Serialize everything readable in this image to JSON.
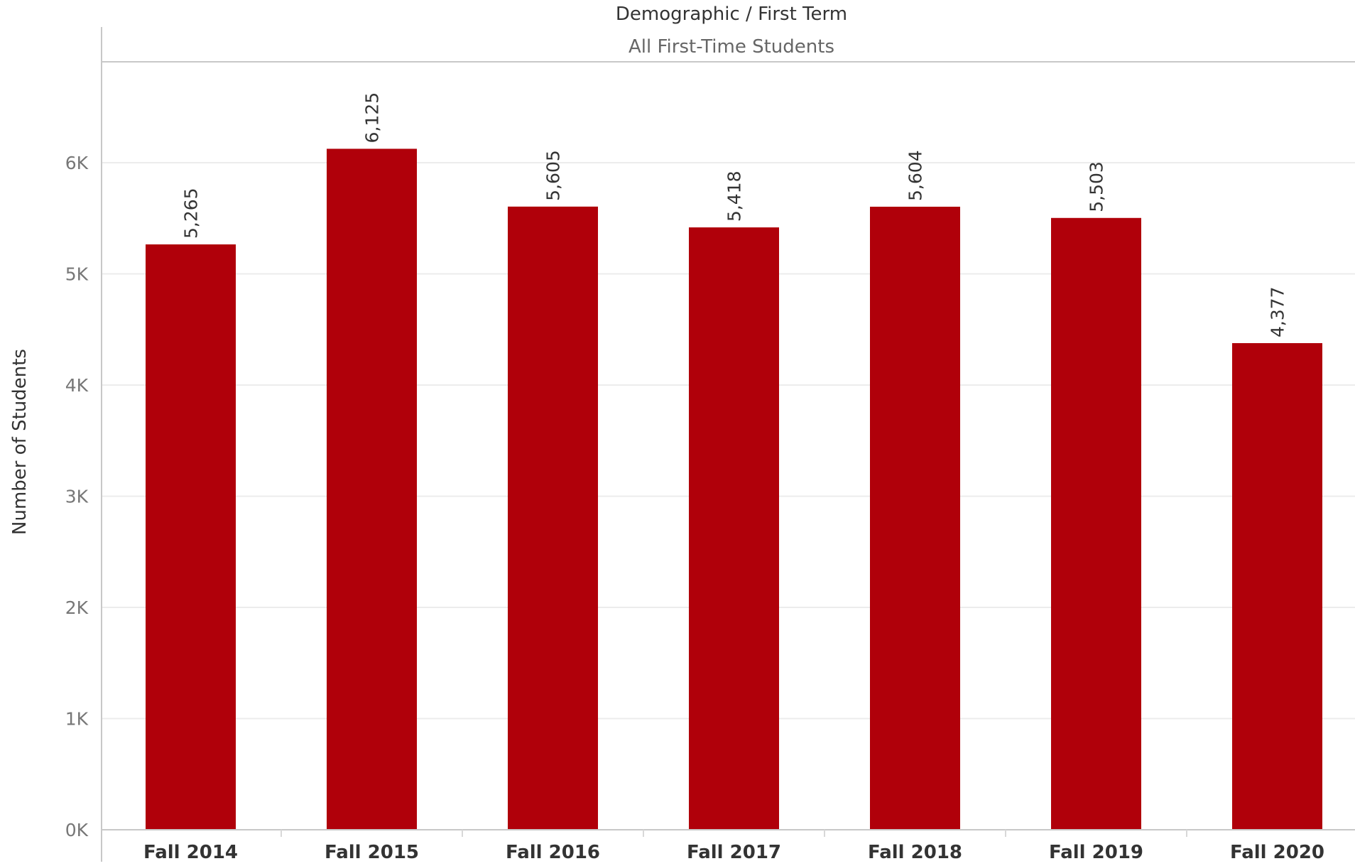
{
  "chart_data": {
    "type": "bar",
    "title": "Demographic / First Term",
    "subtitle": "All First-Time Students",
    "ylabel": "Number of Students",
    "xlabel": "",
    "categories": [
      "Fall 2014",
      "Fall 2015",
      "Fall 2016",
      "Fall 2017",
      "Fall 2018",
      "Fall 2019",
      "Fall 2020"
    ],
    "values": [
      5265,
      6125,
      5605,
      5418,
      5604,
      5503,
      4377
    ],
    "value_labels": [
      "5,265",
      "6,125",
      "5,605",
      "5,418",
      "5,604",
      "5,503",
      "4,377"
    ],
    "y_ticks": [
      0,
      1000,
      2000,
      3000,
      4000,
      5000,
      6000
    ],
    "y_tick_labels": [
      "0K",
      "1K",
      "2K",
      "3K",
      "4K",
      "5K",
      "6K"
    ],
    "ylim": [
      0,
      7000
    ],
    "grid": true,
    "bar_color": "#b0000a"
  }
}
